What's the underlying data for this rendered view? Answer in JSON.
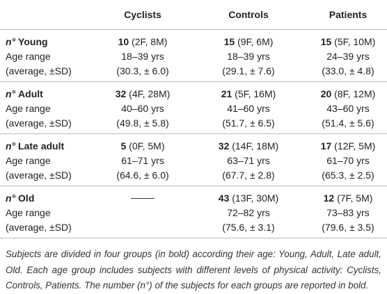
{
  "table": {
    "columns": [
      "Cyclists",
      "Controls",
      "Patients"
    ],
    "groups": [
      {
        "prefix": "n°",
        "label": "Young",
        "counts": [
          {
            "n": 10,
            "detail": "(2F, 8M)"
          },
          {
            "n": 15,
            "detail": "(9F, 6M)"
          },
          {
            "n": 15,
            "detail": "(5F, 10M)"
          }
        ],
        "age_label": "Age range",
        "ages": [
          "18–39 yrs",
          "18–39 yrs",
          "24–39 yrs"
        ],
        "avg_label": "(average, ±SD)",
        "avgs": [
          "(30.3, ± 6.0)",
          "(29.1, ± 7.6)",
          "(33.0, ± 4.8)"
        ]
      },
      {
        "prefix": "n°",
        "label": "Adult",
        "counts": [
          {
            "n": 32,
            "detail": "(4F, 28M)"
          },
          {
            "n": 21,
            "detail": "(5F, 16M)"
          },
          {
            "n": 20,
            "detail": "(8F, 12M)"
          }
        ],
        "age_label": "Age range",
        "ages": [
          "40–60 yrs",
          "41–60 yrs",
          "43–60 yrs"
        ],
        "avg_label": "(average, ±SD)",
        "avgs": [
          "(49.8, ± 5.8)",
          "(51.7, ± 6.5)",
          "(51.4, ± 5.6)"
        ]
      },
      {
        "prefix": "n°",
        "label": "Late adult",
        "counts": [
          {
            "n": 5,
            "detail": "(0F, 5M)"
          },
          {
            "n": 32,
            "detail": "(14F, 18M)"
          },
          {
            "n": 17,
            "detail": "(12F, 5M)"
          }
        ],
        "age_label": "Age range",
        "ages": [
          "61–71 yrs",
          "63–71 yrs",
          "61–70 yrs"
        ],
        "avg_label": "(average, ±SD)",
        "avgs": [
          "(64.6, ± 6.0)",
          "(67.7, ± 2.8)",
          "(65.3, ± 2.5)"
        ]
      },
      {
        "prefix": "n°",
        "label": "Old",
        "counts": [
          null,
          {
            "n": 43,
            "detail": "(13F, 30M)"
          },
          {
            "n": 12,
            "detail": "(7F, 5M)"
          }
        ],
        "age_label": "Age range",
        "ages": [
          null,
          "72–82 yrs",
          "73–83 yrs"
        ],
        "avg_label": "(average, ±SD)",
        "avgs": [
          null,
          "(75.6, ± 3.1)",
          "(79.6, ± 3.5)"
        ]
      }
    ]
  },
  "caption": "Subjects are divided in four groups (in bold) according their age: Young, Adult, Late adult, Old. Each age group includes subjects with different levels of physical activity: Cyclists, Controls, Patients. The number (n°) of the subjects for each groups are reported in bold."
}
